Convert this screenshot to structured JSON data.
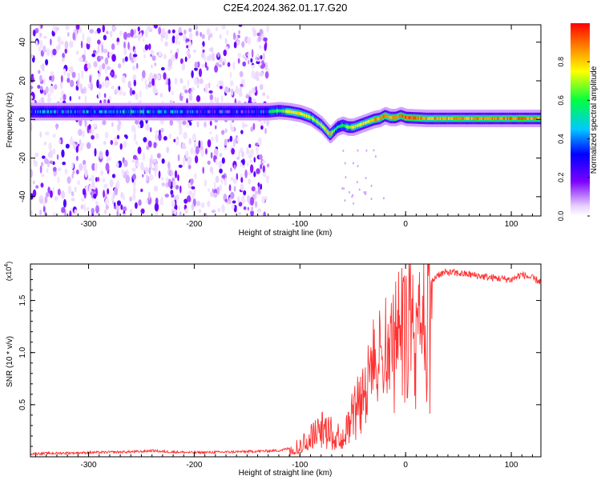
{
  "title": "C2E4.2024.362.01.17.G20",
  "chart_data": [
    {
      "type": "heatmap",
      "xlabel": "Height of straight line (km)",
      "ylabel": "Frequency (Hz)",
      "xlim": [
        -355,
        128
      ],
      "ylim": [
        -50,
        49
      ],
      "xticks": [
        -300,
        -200,
        -100,
        0,
        100
      ],
      "yticks": [
        -40,
        -20,
        0,
        20,
        40
      ],
      "colorbar": {
        "label": "Normalized spectral amplitude",
        "range": [
          0,
          1
        ],
        "ticks": [
          "0.0",
          "0.2",
          "0.4",
          "0.6",
          "0.8"
        ],
        "colormap": "rainbow (white-purple-blue-cyan-green-yellow-orange-red)"
      },
      "noise_region_x": [
        -355,
        -130
      ],
      "ridge": {
        "x": [
          -355,
          -300,
          -250,
          -200,
          -150,
          -130,
          -120,
          -110,
          -100,
          -90,
          -80,
          -72,
          -65,
          -60,
          -55,
          -50,
          -45,
          -40,
          -35,
          -30,
          -25,
          -20,
          -15,
          -10,
          -5,
          0,
          20,
          60,
          100,
          128
        ],
        "freq": [
          4,
          4,
          4,
          4,
          4,
          4,
          4.5,
          4,
          3,
          1,
          -3,
          -8,
          -4,
          -3,
          -4,
          -4,
          -3,
          -2,
          -1,
          0,
          0.5,
          2,
          1,
          1,
          2,
          1,
          0.5,
          0.5,
          0.5,
          0.5
        ],
        "amplitude": [
          0.5,
          0.55,
          0.6,
          0.45,
          0.45,
          0.55,
          0.7,
          0.8,
          0.85,
          0.75,
          0.8,
          0.9,
          0.6,
          0.65,
          0.75,
          0.8,
          0.8,
          0.85,
          0.85,
          0.9,
          0.9,
          0.95,
          0.9,
          0.9,
          0.95,
          1.0,
          0.9,
          0.9,
          0.95,
          0.9
        ]
      }
    },
    {
      "type": "line",
      "xlabel": "Height of straight line (km)",
      "ylabel": "SNR (10 * v/v)",
      "scale_label": "(x10",
      "scale_exp": "4",
      "xlim": [
        -355,
        128
      ],
      "ylim": [
        0,
        1.85
      ],
      "xticks": [
        -300,
        -200,
        -100,
        0,
        100
      ],
      "yticks": [
        0.5,
        1.0,
        1.5
      ],
      "color": "#ff3333",
      "series": [
        {
          "x": [
            -355,
            -300,
            -250,
            -240,
            -230,
            -200,
            -150,
            -120,
            -100,
            -90,
            -80,
            -70,
            -60,
            -55,
            -50,
            -45,
            -40,
            -35,
            -30,
            -25,
            -20,
            -15,
            -10,
            -5,
            0,
            5,
            10,
            20,
            30,
            40,
            60,
            80,
            100,
            110,
            128
          ],
          "values": [
            0.03,
            0.04,
            0.05,
            0.06,
            0.05,
            0.04,
            0.05,
            0.06,
            0.1,
            0.2,
            0.3,
            0.25,
            0.2,
            0.3,
            0.5,
            0.6,
            0.7,
            0.8,
            1.0,
            1.1,
            1.2,
            1.1,
            1.25,
            1.35,
            1.4,
            1.45,
            1.5,
            1.6,
            1.75,
            1.77,
            1.75,
            1.72,
            1.7,
            1.75,
            1.68
          ]
        }
      ]
    }
  ]
}
